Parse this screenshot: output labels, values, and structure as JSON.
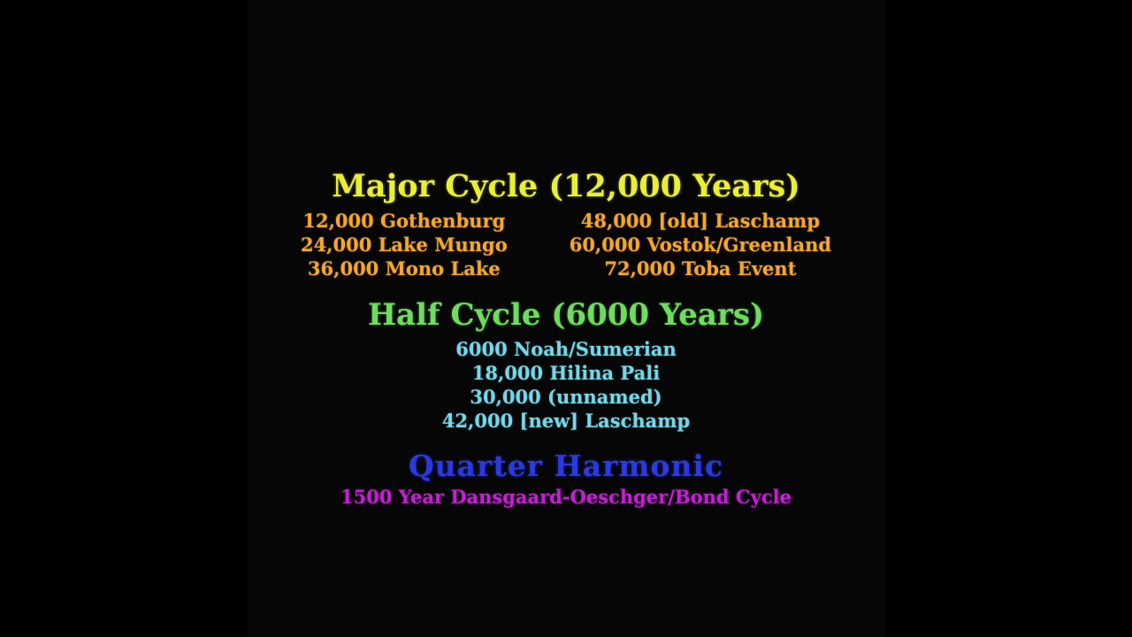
{
  "stage": {
    "background": "#060607",
    "letterbox": "#000000"
  },
  "colors": {
    "major_title": "#e9ef33",
    "major_items": "#f4a72c",
    "half_title": "#6fdc5d",
    "half_items": "#74d8e8",
    "quarter_title": "#2b39de",
    "quarter_items": "#c122cf"
  },
  "major_cycle": {
    "title": "Major Cycle (12,000 Years)",
    "left_column": [
      "12,000 Gothenburg",
      "24,000 Lake Mungo",
      "36,000 Mono Lake"
    ],
    "right_column": [
      "48,000 [old] Laschamp",
      "60,000 Vostok/Greenland",
      "72,000 Toba Event"
    ]
  },
  "half_cycle": {
    "title": "Half Cycle (6000 Years)",
    "items": [
      "6000 Noah/Sumerian",
      "18,000 Hilina Pali",
      "30,000 (unnamed)",
      "42,000 [new] Laschamp"
    ]
  },
  "quarter_harmonic": {
    "title": "Quarter Harmonic",
    "subtitle": "1500 Year Dansgaard-Oeschger/Bond Cycle"
  }
}
